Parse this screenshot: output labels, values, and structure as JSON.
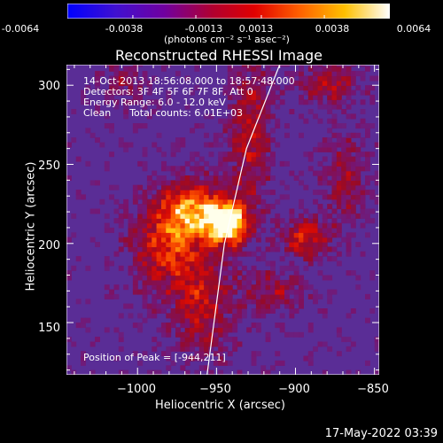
{
  "colorbar": {
    "ticks": [
      "-0.0064",
      "-0.0038",
      "-0.0013",
      "0.0013",
      "0.0038",
      "0.0064"
    ],
    "unit_label": "(photons cm⁻² s⁻¹ asec⁻²)",
    "range": [
      -0.0064,
      0.0064
    ],
    "colors": [
      "#0000ff",
      "#6a00a8",
      "#a0002a",
      "#e00000",
      "#ff7000",
      "#ffd800",
      "#ffffff"
    ]
  },
  "info_lines": [
    "14-Oct-2013 18:56:08.000 to 18:57:48.000",
    "Detectors: 3F 4F 5F 6F 7F 8F, Att 0",
    "Energy Range: 6.0 - 12.0 keV",
    "Clean      Total counts: 6.01E+03"
  ],
  "peak_label": "Position of Peak = [-944,211]",
  "footer": "17-May-2022 03:39",
  "chart_data": {
    "type": "heatmap",
    "title": "Reconstructed RHESSI Image",
    "xlabel": "Heliocentric X (arcsec)",
    "ylabel": "Heliocentric Y (arcsec)",
    "xlim": [
      -1045,
      -847
    ],
    "ylim": [
      117,
      313
    ],
    "xticks": [
      -1000,
      -950,
      -900,
      -850
    ],
    "xtick_labels": [
      "−1000",
      "−950",
      "−900",
      "−850"
    ],
    "yticks": [
      150,
      200,
      250,
      300
    ],
    "ytick_labels": [
      "150",
      "200",
      "250",
      "300"
    ],
    "peak": {
      "x": -944,
      "y": 211
    },
    "sources": [
      {
        "x": -944,
        "y": 211,
        "intensity": 1.0,
        "sx": 9,
        "sy": 9
      },
      {
        "x": -966,
        "y": 220,
        "intensity": 0.72,
        "sx": 16,
        "sy": 14
      },
      {
        "x": -985,
        "y": 196,
        "intensity": 0.5,
        "sx": 16,
        "sy": 20
      },
      {
        "x": -895,
        "y": 202,
        "intensity": 0.55,
        "sx": 11,
        "sy": 9
      },
      {
        "x": -930,
        "y": 270,
        "intensity": 0.45,
        "sx": 10,
        "sy": 34
      },
      {
        "x": -880,
        "y": 300,
        "intensity": 0.4,
        "sx": 14,
        "sy": 10
      },
      {
        "x": -960,
        "y": 160,
        "intensity": 0.45,
        "sx": 14,
        "sy": 24
      },
      {
        "x": -915,
        "y": 168,
        "intensity": 0.35,
        "sx": 14,
        "sy": 10
      },
      {
        "x": -1010,
        "y": 300,
        "intensity": 0.3,
        "sx": 10,
        "sy": 10
      },
      {
        "x": -870,
        "y": 240,
        "intensity": 0.35,
        "sx": 10,
        "sy": 22
      }
    ],
    "limb": [
      [
        -956,
        117
      ],
      [
        -945,
        200
      ],
      [
        -931,
        260
      ],
      [
        -910,
        313
      ]
    ]
  }
}
